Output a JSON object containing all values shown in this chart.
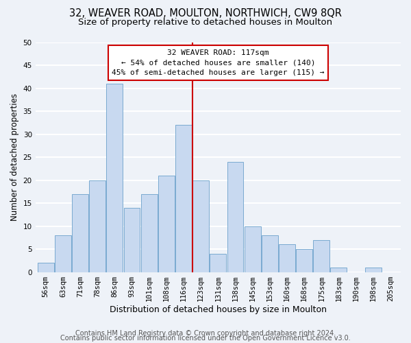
{
  "title1": "32, WEAVER ROAD, MOULTON, NORTHWICH, CW9 8QR",
  "title2": "Size of property relative to detached houses in Moulton",
  "xlabel": "Distribution of detached houses by size in Moulton",
  "ylabel": "Number of detached properties",
  "categories": [
    "56sqm",
    "63sqm",
    "71sqm",
    "78sqm",
    "86sqm",
    "93sqm",
    "101sqm",
    "108sqm",
    "116sqm",
    "123sqm",
    "131sqm",
    "138sqm",
    "145sqm",
    "153sqm",
    "160sqm",
    "168sqm",
    "175sqm",
    "183sqm",
    "190sqm",
    "198sqm",
    "205sqm"
  ],
  "values": [
    2,
    8,
    17,
    20,
    41,
    14,
    17,
    21,
    32,
    20,
    4,
    24,
    10,
    8,
    6,
    5,
    7,
    1,
    0,
    1,
    0
  ],
  "bar_color": "#c8d9f0",
  "bar_edge_color": "#7aaad0",
  "property_line_x": 8.5,
  "annotation_title": "32 WEAVER ROAD: 117sqm",
  "annotation_line1": "← 54% of detached houses are smaller (140)",
  "annotation_line2": "45% of semi-detached houses are larger (115) →",
  "annotation_box_color": "#ffffff",
  "annotation_box_edge": "#cc0000",
  "property_line_color": "#cc0000",
  "ylim": [
    0,
    50
  ],
  "yticks": [
    0,
    5,
    10,
    15,
    20,
    25,
    30,
    35,
    40,
    45,
    50
  ],
  "footer1": "Contains HM Land Registry data © Crown copyright and database right 2024.",
  "footer2": "Contains public sector information licensed under the Open Government Licence v3.0.",
  "background_color": "#eef2f8",
  "grid_color": "#ffffff",
  "title1_fontsize": 10.5,
  "title2_fontsize": 9.5,
  "xlabel_fontsize": 9,
  "ylabel_fontsize": 8.5,
  "tick_fontsize": 7.5,
  "footer_fontsize": 7
}
